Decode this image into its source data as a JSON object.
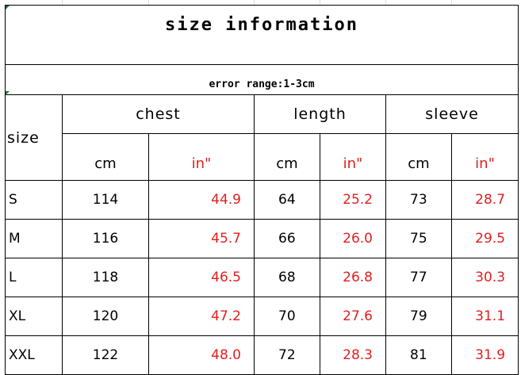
{
  "title": "size information",
  "error_note": "error range:1-3cm",
  "headers": {
    "size": "size",
    "groups": [
      "chest",
      "length",
      "sleeve"
    ],
    "units": [
      "cm",
      "in\"",
      "cm",
      "in\"",
      "cm",
      "in\""
    ]
  },
  "rows": [
    {
      "size": "S",
      "values": [
        "114",
        "44.9",
        "64",
        "25.2",
        "73",
        "28.7"
      ]
    },
    {
      "size": "M",
      "values": [
        "116",
        "45.7",
        "66",
        "26.0",
        "75",
        "29.5"
      ]
    },
    {
      "size": "L",
      "values": [
        "118",
        "46.5",
        "68",
        "26.8",
        "77",
        "30.3"
      ]
    },
    {
      "size": "XL",
      "values": [
        "120",
        "47.2",
        "70",
        "27.6",
        "79",
        "31.1"
      ]
    },
    {
      "size": "XXL",
      "values": [
        "122",
        "48.0",
        "72",
        "28.3",
        "81",
        "31.9"
      ]
    }
  ],
  "colors": {
    "inch_text": "#e0201f",
    "border": "#000000"
  }
}
